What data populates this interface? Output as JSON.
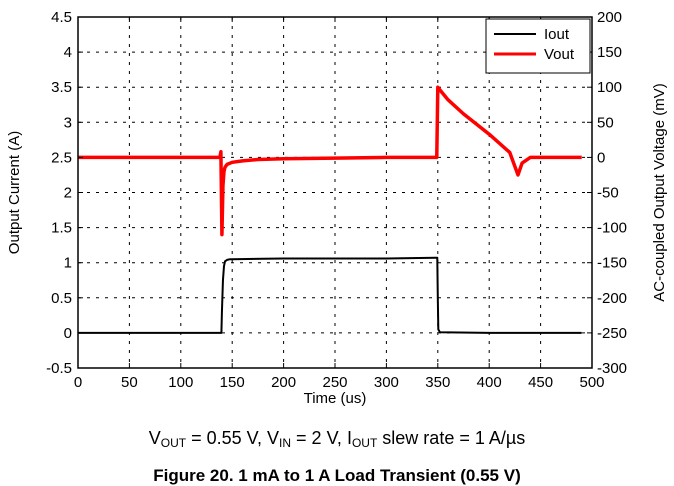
{
  "chart_data": {
    "type": "line",
    "title": "",
    "xlabel": "Time (us)",
    "ylabel": "Output Current (A)",
    "y2label": "AC-coupled Output Voltage (mV)",
    "xlim": [
      0,
      500
    ],
    "ylim": [
      -0.5,
      4.5
    ],
    "y2lim": [
      -300,
      200
    ],
    "xticks": [
      "0",
      "50",
      "100",
      "150",
      "200",
      "250",
      "300",
      "350",
      "400",
      "450",
      "500"
    ],
    "yticks": [
      "-0.5",
      "0",
      "0.5",
      "1",
      "1.5",
      "2",
      "2.5",
      "3",
      "3.5",
      "4",
      "4.5"
    ],
    "y2ticks": [
      "-300",
      "-250",
      "-200",
      "-150",
      "-100",
      "-50",
      "0",
      "50",
      "100",
      "150",
      "200"
    ],
    "grid": true,
    "legend": "top-right",
    "series": [
      {
        "name": "Iout",
        "color": "#000000",
        "axis": "left",
        "x": [
          0,
          139.5,
          140,
          141,
          142,
          143,
          145,
          148,
          150,
          200,
          250,
          300,
          348,
          349.5,
          350,
          350.5,
          352,
          400,
          450,
          490
        ],
        "y": [
          0,
          0,
          0.3,
          0.75,
          0.95,
          1.02,
          1.04,
          1.05,
          1.05,
          1.06,
          1.06,
          1.06,
          1.07,
          1.07,
          0.5,
          0.05,
          0.01,
          0,
          0,
          0
        ]
      },
      {
        "name": "Vout",
        "color": "#ff0000",
        "axis": "right",
        "x": [
          0,
          50,
          100,
          138,
          139,
          140,
          141,
          142,
          143,
          145,
          150,
          160,
          175,
          200,
          250,
          300,
          349,
          350,
          351,
          360,
          375,
          400,
          420,
          428,
          432,
          440,
          460,
          490
        ],
        "y": [
          0,
          0,
          0,
          0,
          8,
          -110,
          -40,
          -20,
          -14,
          -10,
          -7,
          -5,
          -3,
          -2,
          -1,
          0,
          0,
          100,
          98,
          82,
          62,
          33,
          7,
          -25,
          -8,
          0,
          0,
          0
        ]
      }
    ]
  },
  "captions": {
    "conditions": {
      "vout_label": "V",
      "vout_sub": "OUT",
      "vout_value": " = 0.55 V, ",
      "vin_label": "V",
      "vin_sub": "IN",
      "vin_value": " = 2 V, ",
      "iout_label": "I",
      "iout_sub": "OUT",
      "iout_value": " slew rate = 1 A/µs"
    },
    "figure": "Figure 20. 1 mA to 1 A Load Transient (0.55 V)"
  }
}
